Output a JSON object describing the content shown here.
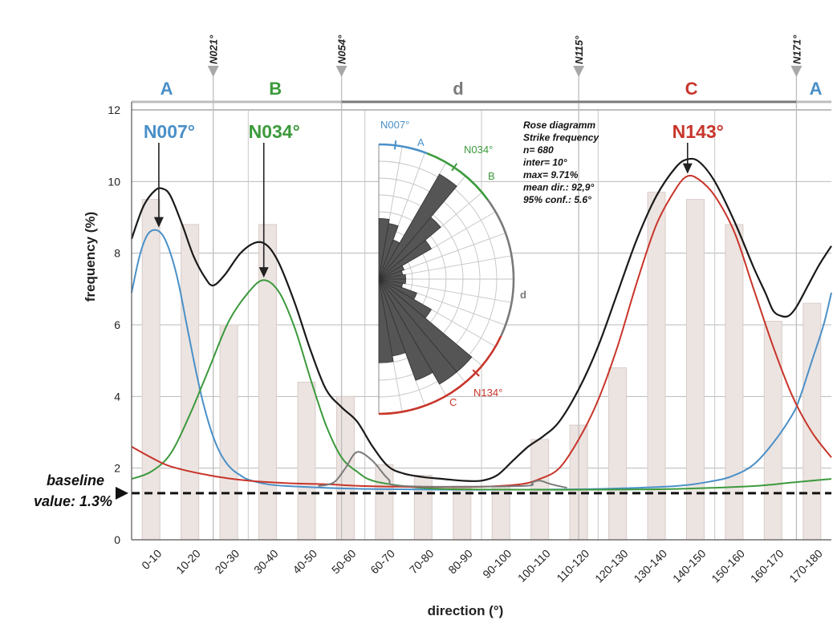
{
  "chart_data": {
    "type": "bar",
    "xlabel": "direction (°)",
    "ylabel": "frequency (%)",
    "ylim": [
      0,
      12
    ],
    "yticks": [
      "0",
      "2",
      "4",
      "6",
      "8",
      "10",
      "12"
    ],
    "grid": true,
    "categories": [
      "0-10",
      "10-20",
      "20-30",
      "30-40",
      "40-50",
      "50-60",
      "60-70",
      "70-80",
      "80-90",
      "90-100",
      "100-110",
      "110-120",
      "120-130",
      "130-140",
      "140-150",
      "150-160",
      "160-170",
      "170-180"
    ],
    "values": [
      9.5,
      8.8,
      6.0,
      8.8,
      4.4,
      4.0,
      2.1,
      1.8,
      1.5,
      1.5,
      2.8,
      3.2,
      4.8,
      9.7,
      9.5,
      8.8,
      6.1,
      6.6
    ],
    "curves": [
      {
        "key": "A",
        "color": "#4a90c8",
        "points": [
          [
            0,
            6.9
          ],
          [
            2,
            7.9
          ],
          [
            4,
            8.5
          ],
          [
            6,
            8.65
          ],
          [
            8,
            8.5
          ],
          [
            10,
            8.0
          ],
          [
            12,
            7.2
          ],
          [
            14,
            6.1
          ],
          [
            16,
            5.0
          ],
          [
            18,
            4.0
          ],
          [
            20,
            3.2
          ],
          [
            22,
            2.6
          ],
          [
            24,
            2.2
          ],
          [
            26,
            1.95
          ],
          [
            28,
            1.8
          ],
          [
            30,
            1.68
          ],
          [
            35,
            1.55
          ],
          [
            40,
            1.5
          ],
          [
            50,
            1.45
          ],
          [
            60,
            1.42
          ],
          [
            80,
            1.4
          ],
          [
            100,
            1.4
          ],
          [
            120,
            1.42
          ],
          [
            140,
            1.5
          ],
          [
            150,
            1.65
          ],
          [
            155,
            1.8
          ],
          [
            160,
            2.1
          ],
          [
            165,
            2.7
          ],
          [
            170,
            3.5
          ],
          [
            172,
            4.0
          ],
          [
            175,
            5.0
          ],
          [
            178,
            6.0
          ],
          [
            180,
            6.9
          ]
        ]
      },
      {
        "key": "B",
        "color": "#3c9a3c",
        "points": [
          [
            0,
            1.7
          ],
          [
            5,
            1.9
          ],
          [
            10,
            2.4
          ],
          [
            15,
            3.5
          ],
          [
            20,
            4.8
          ],
          [
            25,
            6.1
          ],
          [
            30,
            6.9
          ],
          [
            34,
            7.25
          ],
          [
            38,
            6.9
          ],
          [
            42,
            5.9
          ],
          [
            46,
            4.5
          ],
          [
            50,
            3.2
          ],
          [
            54,
            2.3
          ],
          [
            58,
            1.9
          ],
          [
            62,
            1.65
          ],
          [
            70,
            1.5
          ],
          [
            80,
            1.42
          ],
          [
            100,
            1.4
          ],
          [
            120,
            1.4
          ],
          [
            140,
            1.42
          ],
          [
            160,
            1.5
          ],
          [
            170,
            1.6
          ],
          [
            180,
            1.7
          ]
        ]
      },
      {
        "key": "C",
        "color": "#c8352a",
        "points": [
          [
            0,
            2.6
          ],
          [
            5,
            2.3
          ],
          [
            10,
            2.05
          ],
          [
            20,
            1.8
          ],
          [
            30,
            1.65
          ],
          [
            40,
            1.58
          ],
          [
            50,
            1.55
          ],
          [
            60,
            1.5
          ],
          [
            70,
            1.48
          ],
          [
            80,
            1.47
          ],
          [
            90,
            1.48
          ],
          [
            100,
            1.55
          ],
          [
            105,
            1.7
          ],
          [
            110,
            2.0
          ],
          [
            115,
            2.8
          ],
          [
            120,
            3.9
          ],
          [
            125,
            5.4
          ],
          [
            130,
            7.2
          ],
          [
            135,
            8.8
          ],
          [
            140,
            9.8
          ],
          [
            143,
            10.15
          ],
          [
            146,
            10.05
          ],
          [
            150,
            9.6
          ],
          [
            155,
            8.6
          ],
          [
            160,
            7.0
          ],
          [
            165,
            5.4
          ],
          [
            170,
            4.0
          ],
          [
            175,
            3.0
          ],
          [
            180,
            2.3
          ]
        ]
      },
      {
        "key": "d",
        "color": "#7a7a7a",
        "points": [
          [
            48,
            1.5
          ],
          [
            52,
            1.6
          ],
          [
            55,
            2.0
          ],
          [
            58,
            2.45
          ],
          [
            62,
            2.2
          ],
          [
            66,
            1.7
          ],
          [
            70,
            1.5
          ],
          [
            100,
            1.5
          ],
          [
            103,
            1.6
          ],
          [
            105,
            1.65
          ],
          [
            108,
            1.55
          ],
          [
            112,
            1.45
          ]
        ]
      },
      {
        "key": "sum",
        "color": "#1a1a1a",
        "points": [
          [
            0,
            8.4
          ],
          [
            3,
            9.3
          ],
          [
            6,
            9.75
          ],
          [
            8,
            9.8
          ],
          [
            10,
            9.6
          ],
          [
            13,
            8.8
          ],
          [
            16,
            7.9
          ],
          [
            19,
            7.3
          ],
          [
            21,
            7.1
          ],
          [
            24,
            7.4
          ],
          [
            28,
            8.0
          ],
          [
            32,
            8.3
          ],
          [
            35,
            8.2
          ],
          [
            38,
            7.7
          ],
          [
            42,
            6.6
          ],
          [
            46,
            5.3
          ],
          [
            50,
            4.2
          ],
          [
            54,
            3.7
          ],
          [
            58,
            3.3
          ],
          [
            62,
            2.6
          ],
          [
            66,
            2.05
          ],
          [
            70,
            1.85
          ],
          [
            75,
            1.75
          ],
          [
            80,
            1.7
          ],
          [
            85,
            1.65
          ],
          [
            90,
            1.65
          ],
          [
            94,
            1.8
          ],
          [
            98,
            2.2
          ],
          [
            102,
            2.6
          ],
          [
            106,
            2.9
          ],
          [
            110,
            3.3
          ],
          [
            115,
            4.2
          ],
          [
            120,
            5.4
          ],
          [
            125,
            6.9
          ],
          [
            130,
            8.4
          ],
          [
            135,
            9.6
          ],
          [
            140,
            10.4
          ],
          [
            143,
            10.62
          ],
          [
            146,
            10.55
          ],
          [
            150,
            10.0
          ],
          [
            155,
            8.9
          ],
          [
            160,
            7.6
          ],
          [
            163,
            6.9
          ],
          [
            165,
            6.4
          ],
          [
            167,
            6.25
          ],
          [
            169,
            6.25
          ],
          [
            171,
            6.5
          ],
          [
            174,
            7.1
          ],
          [
            177,
            7.7
          ],
          [
            180,
            8.2
          ]
        ]
      }
    ],
    "baseline": {
      "value": 1.3,
      "label_line1": "baseline",
      "label_line2": "value: 1.3%"
    },
    "zones": [
      {
        "label": "A",
        "color": "#4a90c8",
        "x": 9
      },
      {
        "label": "B",
        "color": "#3c9a3c",
        "x": 37
      },
      {
        "label": "d",
        "color": "#7a7a7a",
        "x": 84
      },
      {
        "label": "C",
        "color": "#c8352a",
        "x": 144
      },
      {
        "label": "A",
        "color": "#4a90c8",
        "x": 176
      }
    ],
    "zone_bars": [
      {
        "from": 0,
        "to": 21,
        "color": "#bdbdbd"
      },
      {
        "from": 21,
        "to": 54,
        "color": "#bdbdbd"
      },
      {
        "from": 54,
        "to": 115,
        "color": "#7a7a7a"
      },
      {
        "from": 115,
        "to": 171,
        "color": "#7a7a7a"
      },
      {
        "from": 171,
        "to": 180,
        "color": "#bdbdbd"
      }
    ],
    "boundaries": [
      {
        "label": "N021°",
        "x": 21
      },
      {
        "label": "N054°",
        "x": 54
      },
      {
        "label": "N115°",
        "x": 115
      },
      {
        "label": "N171°",
        "x": 171
      }
    ],
    "peaks": [
      {
        "label": "N007°",
        "color": "#4a90c8",
        "x": 7,
        "y": 8.65
      },
      {
        "label": "N034°",
        "color": "#3c9a3c",
        "x": 34,
        "y": 7.25
      },
      {
        "label": "N143°",
        "color": "#c8352a",
        "x": 143,
        "y": 10.15
      }
    ],
    "rose": {
      "petals": [
        {
          "dir": 5,
          "len": 0.45
        },
        {
          "dir": 15,
          "len": 0.42
        },
        {
          "dir": 25,
          "len": 0.31
        },
        {
          "dir": 35,
          "len": 0.9
        },
        {
          "dir": 45,
          "len": 0.6
        },
        {
          "dir": 55,
          "len": 0.45
        },
        {
          "dir": 65,
          "len": 0.2
        },
        {
          "dir": 75,
          "len": 0.18
        },
        {
          "dir": 85,
          "len": 0.2
        },
        {
          "dir": 95,
          "len": 0.2
        },
        {
          "dir": 105,
          "len": 0.18
        },
        {
          "dir": 115,
          "len": 0.3
        },
        {
          "dir": 125,
          "len": 0.45
        },
        {
          "dir": 135,
          "len": 0.9
        },
        {
          "dir": 145,
          "len": 0.9
        },
        {
          "dir": 155,
          "len": 0.8
        },
        {
          "dir": 165,
          "len": 0.58
        },
        {
          "dir": 175,
          "len": 0.62
        }
      ],
      "arcs": [
        {
          "key": "A",
          "color": "#4a90c8",
          "from": 0,
          "to": 21
        },
        {
          "key": "B",
          "color": "#3c9a3c",
          "from": 21,
          "to": 54
        },
        {
          "key": "d",
          "color": "#7a7a7a",
          "from": 54,
          "to": 115
        },
        {
          "key": "C",
          "color": "#c8352a",
          "from": 115,
          "to": 180
        }
      ],
      "labels": {
        "n007": "N007°",
        "n034": "N034°",
        "n134": "N134°",
        "a": "A",
        "b": "B",
        "c": "C",
        "d": "d"
      },
      "info": [
        "Rose diagramm",
        "Strike frequency",
        "n= 680",
        "inter= 10°",
        "max= 9.71%",
        "mean dir.: 92,9°",
        "95% conf.: 5.6°"
      ]
    }
  }
}
